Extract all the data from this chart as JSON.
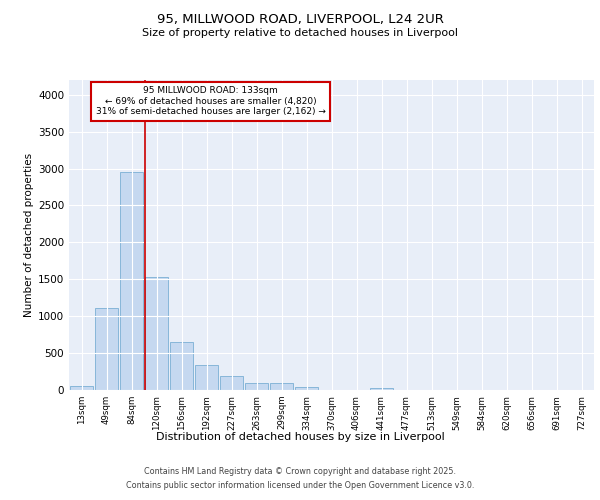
{
  "title_line1": "95, MILLWOOD ROAD, LIVERPOOL, L24 2UR",
  "title_line2": "Size of property relative to detached houses in Liverpool",
  "xlabel": "Distribution of detached houses by size in Liverpool",
  "ylabel": "Number of detached properties",
  "bar_labels": [
    "13sqm",
    "49sqm",
    "84sqm",
    "120sqm",
    "156sqm",
    "192sqm",
    "227sqm",
    "263sqm",
    "299sqm",
    "334sqm",
    "370sqm",
    "406sqm",
    "441sqm",
    "477sqm",
    "513sqm",
    "549sqm",
    "584sqm",
    "620sqm",
    "656sqm",
    "691sqm",
    "727sqm"
  ],
  "bar_values": [
    55,
    1110,
    2960,
    1530,
    655,
    340,
    190,
    95,
    90,
    35,
    5,
    5,
    30,
    2,
    0,
    0,
    0,
    0,
    0,
    0,
    0
  ],
  "bar_color": "#c5d8f0",
  "bar_edge_color": "#7bafd4",
  "vline_color": "#cc0000",
  "annotation_text": "95 MILLWOOD ROAD: 133sqm\n← 69% of detached houses are smaller (4,820)\n31% of semi-detached houses are larger (2,162) →",
  "annotation_box_color": "#cc0000",
  "annotation_text_color": "#000000",
  "ylim": [
    0,
    4200
  ],
  "yticks": [
    0,
    500,
    1000,
    1500,
    2000,
    2500,
    3000,
    3500,
    4000
  ],
  "background_color": "#e8eef8",
  "grid_color": "#ffffff",
  "footer_line1": "Contains HM Land Registry data © Crown copyright and database right 2025.",
  "footer_line2": "Contains public sector information licensed under the Open Government Licence v3.0."
}
